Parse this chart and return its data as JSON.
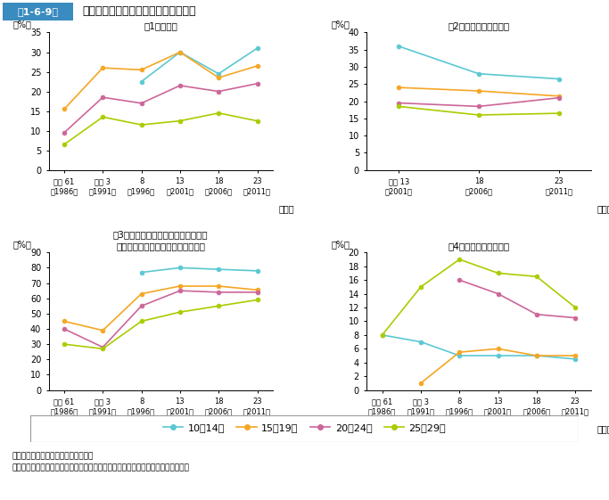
{
  "title_box": "第1-6-9図",
  "title_main": "自由時間における主な活動の行動者率",
  "colors": {
    "age10_14": "#5bc8d2",
    "age15_19": "#f5a623",
    "age20_24": "#cc6699",
    "age25_29": "#aacc00"
  },
  "legend_labels": [
    "10～14歳",
    "15～19歳",
    "20～24歳",
    "25～29歳"
  ],
  "chart1": {
    "title": "（1）外国語",
    "xlabel_years": [
      "昭和 61\n（1986）",
      "平成 3\n（1991）",
      "8\n（1996）",
      "13\n（2001）",
      "18\n（2006）",
      "23\n（2011）"
    ],
    "xlabel_bottom": "（年）",
    "ylim": [
      0,
      35
    ],
    "yticks": [
      0,
      5,
      10,
      15,
      20,
      25,
      30,
      35
    ],
    "ylabel": "（%）",
    "data": {
      "age10_14": [
        null,
        null,
        22.5,
        30.0,
        24.5,
        31.0
      ],
      "age15_19": [
        15.5,
        26.0,
        25.5,
        30.0,
        23.5,
        26.5
      ],
      "age20_24": [
        9.5,
        18.5,
        17.0,
        21.5,
        20.0,
        22.0
      ],
      "age25_29": [
        6.5,
        13.5,
        11.5,
        12.5,
        14.5,
        12.5
      ]
    }
  },
  "chart2": {
    "title": "（2）ボランティア活動",
    "xlabel_years": [
      "平成 13\n（2001）",
      "18\n（2006）",
      "23\n（2011）"
    ],
    "xlabel_bottom": "（年）",
    "ylim": [
      0,
      40
    ],
    "yticks": [
      0,
      5,
      10,
      15,
      20,
      25,
      30,
      35,
      40
    ],
    "ylabel": "（%）",
    "data": {
      "age10_14": [
        36.0,
        28.0,
        26.5
      ],
      "age15_19": [
        24.0,
        23.0,
        21.5
      ],
      "age20_24": [
        19.5,
        18.5,
        21.0
      ],
      "age25_29": [
        18.5,
        16.0,
        16.5
      ]
    }
  },
  "chart3": {
    "title": "（3）テレビゲーム・パソコンゲーム",
    "title2": "（家庭で行うもの，携帯用を含む）",
    "xlabel_years": [
      "昭和 61\n（1986）",
      "平成 3\n（1991）",
      "8\n（1996）",
      "13\n（2001）",
      "18\n（2006）",
      "23\n（2011）"
    ],
    "xlabel_bottom": "（年）",
    "ylim": [
      0,
      90
    ],
    "yticks": [
      0,
      10,
      20,
      30,
      40,
      50,
      60,
      70,
      80,
      90
    ],
    "ylabel": "（%）",
    "data": {
      "age10_14": [
        null,
        null,
        77.0,
        80.0,
        79.0,
        78.0
      ],
      "age15_19": [
        45.0,
        39.0,
        63.0,
        68.0,
        68.0,
        65.5
      ],
      "age20_24": [
        40.0,
        28.0,
        55.0,
        65.0,
        64.0,
        64.0
      ],
      "age25_29": [
        30.0,
        27.0,
        45.0,
        51.0,
        55.0,
        59.0
      ]
    }
  },
  "chart4": {
    "title": "（4）観光旅行（海外）",
    "xlabel_years": [
      "昭和 61\n（1986）",
      "平成 3\n（1991）",
      "8\n（1996）",
      "13\n（2001）",
      "18\n（2006）",
      "23\n（2011）"
    ],
    "xlabel_bottom": "（年）",
    "ylim": [
      0,
      20
    ],
    "yticks": [
      0,
      2,
      4,
      6,
      8,
      10,
      12,
      14,
      16,
      18,
      20
    ],
    "ylabel": "（%）",
    "data": {
      "age10_14": [
        8.0,
        7.0,
        5.0,
        5.0,
        5.0,
        4.5
      ],
      "age15_19": [
        null,
        1.0,
        5.5,
        6.0,
        5.0,
        5.0
      ],
      "age20_24": [
        null,
        null,
        16.0,
        14.0,
        11.0,
        10.5
      ],
      "age25_29": [
        8.0,
        15.0,
        19.0,
        17.0,
        16.5,
        12.0
      ]
    }
  },
  "footnote1": "（出典）総務省「社会生活基本調査」",
  "footnote2": "（注）行動者率とは，１年間に上記活動を行った者の当該属性人口に占める割合。"
}
